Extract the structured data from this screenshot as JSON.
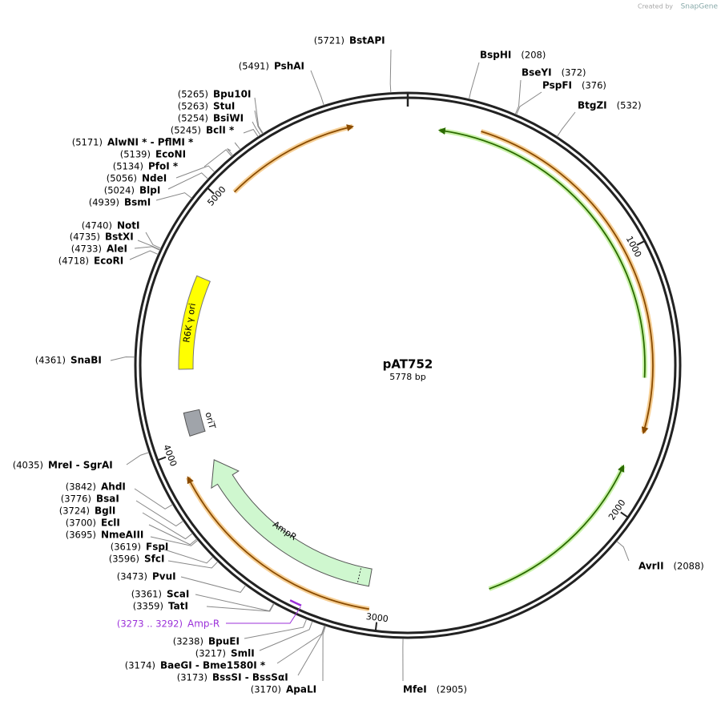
{
  "credit": {
    "prefix": "Created by",
    "brand": "SnapGene"
  },
  "plasmid": {
    "name": "pAT752",
    "length": "5778 bp"
  },
  "enzymes": [
    {
      "position": "(5721)",
      "name": "BstAPI"
    },
    {
      "position": "(5491)",
      "name": "PshAI"
    },
    {
      "position": "(5265)",
      "name": "Bpu10I"
    },
    {
      "position": "(5263)",
      "name": "StuI"
    },
    {
      "position": "(5254)",
      "name": "BsiWI"
    },
    {
      "position": "(5245)",
      "name": "BclI *"
    },
    {
      "position": "(5171)",
      "name": "AlwNI *  -  PflMI *"
    },
    {
      "position": "(5139)",
      "name": "EcoNI"
    },
    {
      "position": "(5134)",
      "name": "PfoI *"
    },
    {
      "position": "(5056)",
      "name": "NdeI"
    },
    {
      "position": "(5024)",
      "name": "BlpI"
    },
    {
      "position": "(4939)",
      "name": "BsmI"
    },
    {
      "position": "(4740)",
      "name": "NotI"
    },
    {
      "position": "(4735)",
      "name": "BstXI"
    },
    {
      "position": "(4733)",
      "name": "AleI"
    },
    {
      "position": "(4718)",
      "name": "EcoRI"
    },
    {
      "position": "(4361)",
      "name": "SnaBI"
    },
    {
      "position": "(4035)",
      "name": "MreI  -  SgrAI"
    },
    {
      "position": "(3842)",
      "name": "AhdI"
    },
    {
      "position": "(3776)",
      "name": "BsaI"
    },
    {
      "position": "(3724)",
      "name": "BglI"
    },
    {
      "position": "(3700)",
      "name": "EclI"
    },
    {
      "position": "(3695)",
      "name": "NmeAIII"
    },
    {
      "position": "(3619)",
      "name": "FspI"
    },
    {
      "position": "(3596)",
      "name": "SfcI"
    },
    {
      "position": "(3473)",
      "name": "PvuI"
    },
    {
      "position": "(3361)",
      "name": "ScaI"
    },
    {
      "position": "(3359)",
      "name": "TatI"
    },
    {
      "position": "(3238)",
      "name": "BpuEI"
    },
    {
      "position": "(3217)",
      "name": "SmlI"
    },
    {
      "position": "(3174)",
      "name": "BaeGI  -  Bme1580I *"
    },
    {
      "position": "(3173)",
      "name": "BssSI  -  BssSαI"
    },
    {
      "position": "(3170)",
      "name": "ApaLI"
    },
    {
      "position": "(208)",
      "name": "BspHI"
    },
    {
      "position": "(372)",
      "name": "BseYI"
    },
    {
      "position": "(376)",
      "name": "PspFI"
    },
    {
      "position": "(532)",
      "name": "BtgZI"
    },
    {
      "position": "(2088)",
      "name": "AvrII"
    },
    {
      "position": "(2905)",
      "name": "MfeI"
    }
  ],
  "primer": {
    "range": "(3273 .. 3292)",
    "name": "Amp-R"
  },
  "features": {
    "ori": "R6K γ ori",
    "orit": "oriT",
    "ampr": "AmpR"
  },
  "ruler": [
    "1000",
    "2000",
    "3000",
    "4000",
    "5000"
  ]
}
